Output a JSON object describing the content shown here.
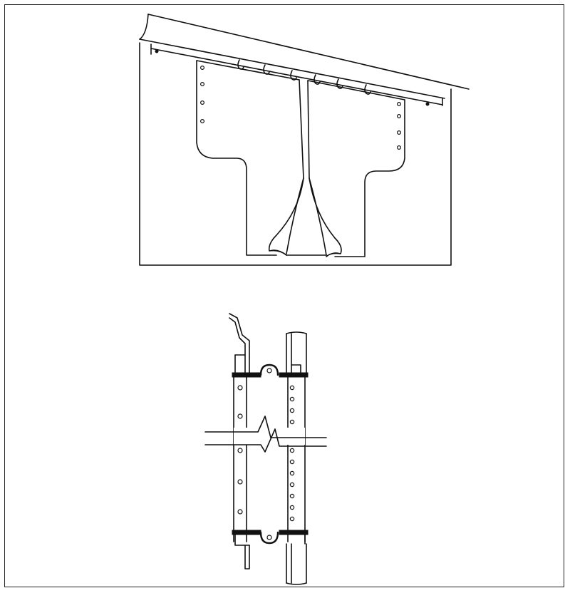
{
  "figure": {
    "panels": [
      {
        "name": "strip-curtain-overview",
        "label": ""
      },
      {
        "name": "strip-mounting-detail",
        "label": ""
      }
    ],
    "colors": {
      "line": "#111111",
      "background": "#ffffff"
    }
  }
}
